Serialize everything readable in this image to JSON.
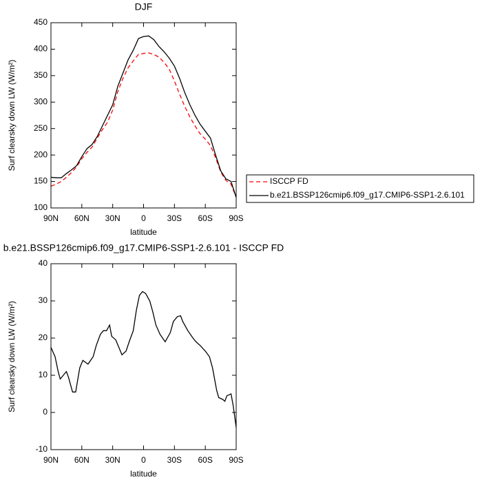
{
  "chart_data": [
    {
      "type": "line",
      "title": "DJF",
      "x_label": "latitude",
      "y_label": "Surf clearsky down LW (W/m²)",
      "x": [
        90,
        85,
        80,
        75,
        70,
        65,
        60,
        55,
        50,
        45,
        40,
        35,
        30,
        25,
        20,
        15,
        10,
        5,
        0,
        -5,
        -10,
        -15,
        -20,
        -25,
        -30,
        -35,
        -40,
        -45,
        -50,
        -55,
        -60,
        -65,
        -70,
        -75,
        -80,
        -85,
        -90
      ],
      "series": [
        {
          "name": "ISCCP FD",
          "color": "#ff0000",
          "dash": true,
          "values": [
            141,
            145,
            150,
            158,
            167,
            178,
            193,
            205,
            215,
            232,
            248,
            262,
            285,
            320,
            345,
            365,
            378,
            390,
            392,
            393,
            390,
            385,
            375,
            362,
            340,
            315,
            292,
            272,
            255,
            240,
            230,
            218,
            195,
            168,
            152,
            145,
            120
          ]
        },
        {
          "name": "b.e21.BSSP126cmip6.f09_g17.CMIP6-SSP1-2.6.101",
          "color": "#000000",
          "dash": false,
          "values": [
            158,
            157,
            157,
            165,
            172,
            180,
            197,
            212,
            220,
            235,
            255,
            275,
            295,
            330,
            355,
            380,
            398,
            420,
            424,
            425,
            418,
            405,
            395,
            383,
            368,
            345,
            318,
            295,
            275,
            258,
            245,
            232,
            200,
            170,
            155,
            150,
            120
          ]
        }
      ],
      "xlim": [
        90,
        -90
      ],
      "xticks": [
        {
          "value": 90,
          "label": "90N"
        },
        {
          "value": 60,
          "label": "60N"
        },
        {
          "value": 30,
          "label": "30N"
        },
        0,
        {
          "value": -30,
          "label": "30S"
        },
        {
          "value": -60,
          "label": "60S"
        },
        {
          "value": -90,
          "label": "90S"
        }
      ],
      "ylim": [
        100,
        450
      ],
      "yticks": [
        100,
        150,
        200,
        250,
        300,
        350,
        400,
        450
      ],
      "legend": "right"
    },
    {
      "type": "line",
      "title": "b.e21.BSSP126cmip6.f09_g17.CMIP6-SSP1-2.6.101 - ISCCP FD",
      "x_label": "latitude",
      "y_label": "Surf clearsky down LW (W/m²)",
      "x": [
        90,
        86,
        83,
        81,
        75,
        73,
        69,
        66,
        62,
        59,
        54,
        49,
        46,
        42,
        39,
        36,
        33,
        31,
        27,
        24,
        21,
        17,
        14,
        10,
        7,
        4,
        1,
        -2,
        -6,
        -9,
        -12,
        -16,
        -21,
        -26,
        -29,
        -33,
        -36,
        -38,
        -43,
        -48,
        -51,
        -55,
        -60,
        -64,
        -67,
        -71,
        -73,
        -77,
        -79,
        -81,
        -85,
        -87,
        -90
      ],
      "values": [
        17.5,
        15,
        11,
        9,
        11,
        9.5,
        5.5,
        5.5,
        12,
        14,
        13,
        15,
        18,
        21,
        22,
        22,
        23.5,
        20.5,
        19.5,
        17.5,
        15.5,
        16.5,
        19,
        22,
        27.5,
        31.5,
        32.5,
        32,
        30,
        27,
        23.5,
        21,
        19,
        21.5,
        24.5,
        25.8,
        26,
        24.5,
        22,
        20,
        19,
        18,
        16.5,
        15,
        12,
        6,
        4,
        3.5,
        3,
        4.5,
        5,
        2,
        -4
      ],
      "color": "#000000",
      "xlim": [
        90,
        -90
      ],
      "xticks": [
        {
          "value": 90,
          "label": "90N"
        },
        {
          "value": 60,
          "label": "60N"
        },
        {
          "value": 30,
          "label": "30N"
        },
        0,
        {
          "value": -30,
          "label": "30S"
        },
        {
          "value": -60,
          "label": "60S"
        },
        {
          "value": -90,
          "label": "90S"
        }
      ],
      "ylim": [
        -10,
        40
      ],
      "yticks": [
        -10,
        0,
        10,
        20,
        30,
        40
      ]
    }
  ]
}
